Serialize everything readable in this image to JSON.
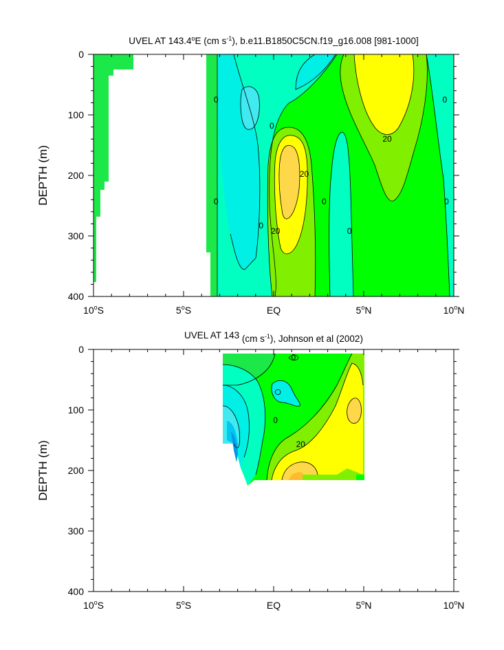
{
  "chart_data": [
    {
      "type": "contour",
      "title_prefix": "UVEL AT 143.4",
      "title_deg": "o",
      "title_mid": "E (cm s",
      "title_sup": "-1",
      "title_suffix": "), b.e11.B1850C5CN.f19_g16.008 [981-1000]",
      "ylabel": "DEPTH (m)",
      "xlim": [
        -10,
        10
      ],
      "ylim": [
        400,
        0
      ],
      "x_ticks": [
        {
          "value": -10,
          "num": "10",
          "deg": "o",
          "hemi": "S"
        },
        {
          "value": -5,
          "num": "5",
          "deg": "o",
          "hemi": "S"
        },
        {
          "value": 0,
          "num": "EQ",
          "deg": "",
          "hemi": ""
        },
        {
          "value": 5,
          "num": "5",
          "deg": "o",
          "hemi": "N"
        },
        {
          "value": 10,
          "num": "10",
          "deg": "o",
          "hemi": "N"
        }
      ],
      "y_ticks": [
        0,
        100,
        200,
        300,
        400
      ],
      "contour_labels": [
        {
          "text": "0",
          "x": -3.2,
          "y": 75
        },
        {
          "text": "0",
          "x": -0.1,
          "y": 118
        },
        {
          "text": "0",
          "x": -3.2,
          "y": 243
        },
        {
          "text": "0",
          "x": -0.7,
          "y": 283
        },
        {
          "text": "0",
          "x": 2.8,
          "y": 243
        },
        {
          "text": "0",
          "x": 4.2,
          "y": 292
        },
        {
          "text": "0",
          "x": 9.5,
          "y": 75
        },
        {
          "text": "0",
          "x": 9.6,
          "y": 243
        },
        {
          "text": "20",
          "x": 1.7,
          "y": 198
        },
        {
          "text": "20",
          "x": 0.1,
          "y": 292
        },
        {
          "text": "20",
          "x": 6.3,
          "y": 140
        }
      ]
    },
    {
      "type": "contour",
      "title_prefix": "UVEL AT 143",
      "title_deg": "",
      "title_mid": " (cm s",
      "title_sup": "-1",
      "title_suffix": "), Johnson et al (2002)",
      "ylabel": "DEPTH (m)",
      "xlim": [
        -10,
        10
      ],
      "ylim": [
        400,
        0
      ],
      "x_ticks": [
        {
          "value": -10,
          "num": "10",
          "deg": "o",
          "hemi": "S"
        },
        {
          "value": -5,
          "num": "5",
          "deg": "o",
          "hemi": "S"
        },
        {
          "value": 0,
          "num": "EQ",
          "deg": "",
          "hemi": ""
        },
        {
          "value": 5,
          "num": "5",
          "deg": "o",
          "hemi": "N"
        },
        {
          "value": 10,
          "num": "10",
          "deg": "o",
          "hemi": "N"
        }
      ],
      "y_ticks": [
        0,
        100,
        200,
        300,
        400
      ],
      "contour_labels": [
        {
          "text": "0",
          "x": 1.1,
          "y": 13
        },
        {
          "text": "0",
          "x": 0.1,
          "y": 117
        },
        {
          "text": "20",
          "x": 1.5,
          "y": 157
        }
      ]
    }
  ],
  "colors": {
    "green": "#1ce84a",
    "light_green": "#00ff00",
    "yellow_green": "#80f000",
    "yellow": "#ffff00",
    "gold": "#ffd84a",
    "orange": "#ffbb30",
    "teal": "#00ffc0",
    "aqua": "#00f0e6",
    "cyan": "#40eaf0",
    "light_blue": "#00c8f0",
    "blue": "#009be6"
  }
}
